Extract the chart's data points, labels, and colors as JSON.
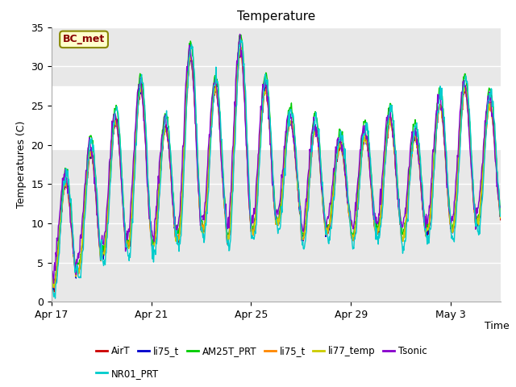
{
  "title": "Temperature",
  "xlabel": "Time",
  "ylabel": "Temperatures (C)",
  "ylim": [
    0,
    35
  ],
  "yticks": [
    0,
    5,
    10,
    15,
    20,
    25,
    30,
    35
  ],
  "x_tick_labels": [
    "Apr 17",
    "Apr 21",
    "Apr 25",
    "Apr 29",
    "May 3"
  ],
  "x_tick_positions": [
    0,
    4,
    8,
    12,
    16
  ],
  "shaded_band": [
    19.5,
    27.5
  ],
  "series_colors": [
    "#cc0000",
    "#0000cc",
    "#00cc00",
    "#ff8800",
    "#cccc00",
    "#8800cc",
    "#00cccc"
  ],
  "legend_labels": [
    "AirT",
    "li75_t",
    "AM25T_PRT",
    "li75_t",
    "li77_temp",
    "Tsonic",
    "NR01_PRT"
  ],
  "bg_color": "#f0f0f0",
  "plot_bg_color": "#e8e8e8",
  "annotation_text": "BC_met",
  "n_days": 18,
  "pts_per_day": 48
}
